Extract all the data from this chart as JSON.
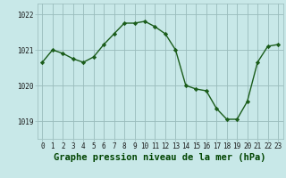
{
  "x": [
    0,
    1,
    2,
    3,
    4,
    5,
    6,
    7,
    8,
    9,
    10,
    11,
    12,
    13,
    14,
    15,
    16,
    17,
    18,
    19,
    20,
    21,
    22,
    23
  ],
  "y": [
    1020.65,
    1021.0,
    1020.9,
    1020.75,
    1020.65,
    1020.8,
    1021.15,
    1021.45,
    1021.75,
    1021.75,
    1021.8,
    1021.65,
    1021.45,
    1021.0,
    1020.0,
    1019.9,
    1019.85,
    1019.35,
    1019.05,
    1019.05,
    1019.55,
    1020.65,
    1021.1,
    1021.15
  ],
  "line_color": "#1a5c1a",
  "marker": "D",
  "marker_size": 2.2,
  "bg_color": "#c8e8e8",
  "grid_color": "#99bbbb",
  "xlabel": "Graphe pression niveau de la mer (hPa)",
  "xlabel_fontsize": 7.5,
  "ylim": [
    1018.5,
    1022.3
  ],
  "yticks": [
    1019,
    1020,
    1021,
    1022
  ],
  "xticks": [
    0,
    1,
    2,
    3,
    4,
    5,
    6,
    7,
    8,
    9,
    10,
    11,
    12,
    13,
    14,
    15,
    16,
    17,
    18,
    19,
    20,
    21,
    22,
    23
  ],
  "tick_fontsize": 5.5,
  "line_width": 1.0,
  "bottom_label_color": "#006600",
  "bottom_bg_color": "#5a8a5a"
}
